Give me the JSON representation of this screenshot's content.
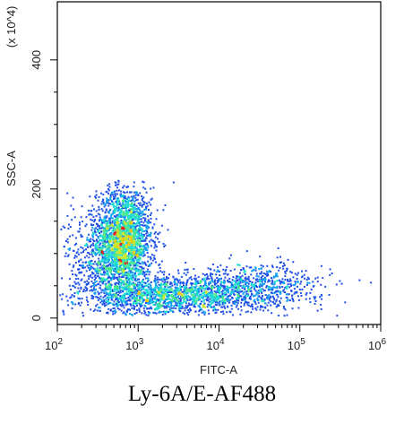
{
  "chart_data": {
    "type": "scatter",
    "style": "flow-cytometry density dot plot",
    "xlabel": "FITC-A",
    "ylabel": "SSC-A",
    "y_multiplier_label": "(x 10^4)",
    "x_scale": "log",
    "x_range": [
      100,
      1000000
    ],
    "x_ticks": [
      {
        "value": 100,
        "base": "10",
        "exp": "2"
      },
      {
        "value": 1000,
        "base": "10",
        "exp": "3"
      },
      {
        "value": 10000,
        "base": "10",
        "exp": "4"
      },
      {
        "value": 100000,
        "base": "10",
        "exp": "5"
      },
      {
        "value": 1000000,
        "base": "10",
        "exp": "6"
      }
    ],
    "y_scale": "linear",
    "y_range": [
      -10,
      490
    ],
    "y_ticks": [
      0,
      200,
      400
    ],
    "caption": "Ly-6A/E-AF488",
    "density_colormap": [
      "#1414b4",
      "#1e50e6",
      "#14a0f0",
      "#1edcd2",
      "#50e68c",
      "#c8e632",
      "#f0c814",
      "#e61e1e"
    ],
    "populations": [
      {
        "center_x": 650,
        "center_y": 120,
        "spread_log_x": 0.17,
        "spread_y": 42,
        "count": 2400
      },
      {
        "center_x": 2500,
        "center_y": 35,
        "spread_log_x": 0.55,
        "spread_y": 14,
        "count": 1500
      },
      {
        "center_x": 25000,
        "center_y": 50,
        "spread_log_x": 0.45,
        "spread_y": 18,
        "count": 700
      },
      {
        "center_x": 300,
        "center_y": 90,
        "spread_log_x": 0.2,
        "spread_y": 45,
        "count": 450
      }
    ]
  }
}
